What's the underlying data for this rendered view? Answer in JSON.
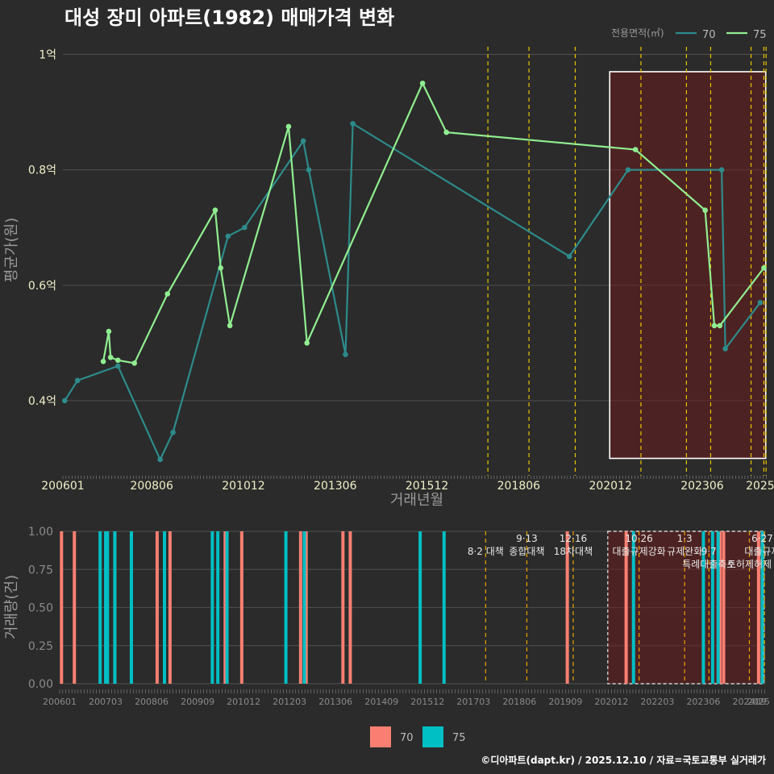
{
  "chart_data": [
    {
      "type": "line",
      "title": "대성 장미 아파트(1982) 매매가격 변화",
      "xlabel": "거래년월",
      "ylabel": "평균가(원)",
      "xlim": [
        2006.0,
        2025.2
      ],
      "ylim": [
        0.27,
        1.03
      ],
      "x_tick_labels": [
        "200601",
        "200806",
        "201012",
        "201306",
        "201512",
        "201806",
        "202012",
        "202306",
        "2025"
      ],
      "x_tick_values": [
        2006.0,
        2008.42,
        2010.92,
        2013.42,
        2015.92,
        2018.42,
        2020.92,
        2023.42,
        2025.0
      ],
      "y_tick_labels": [
        "0.4억",
        "0.6억",
        "0.8억",
        "1억"
      ],
      "y_tick_values": [
        0.4,
        0.6,
        0.8,
        1.0
      ],
      "legend_title": "전용면적(㎡)",
      "legend_position": "top-right",
      "highlight_region": {
        "x": [
          2020.9,
          2025.15
        ],
        "y": [
          0.3,
          0.97
        ]
      },
      "policy_lines": [
        2017.58,
        2018.7,
        2019.96,
        2021.75,
        2022.99,
        2023.65,
        2024.75,
        2025.1,
        2025.16
      ],
      "series": [
        {
          "name": "70",
          "color": "#2e8b8b",
          "x": [
            2006.05,
            2006.4,
            2007.5,
            2008.65,
            2009.0,
            2010.5,
            2010.95,
            2012.55,
            2012.7,
            2013.7,
            2013.9,
            2019.8,
            2021.4,
            2023.95,
            2024.05,
            2025.0
          ],
          "y": [
            0.4,
            0.435,
            0.46,
            0.298,
            0.345,
            0.685,
            0.7,
            0.85,
            0.8,
            0.48,
            0.88,
            0.65,
            0.8,
            0.8,
            0.49,
            0.57
          ]
        },
        {
          "name": "75",
          "color": "#90ee90",
          "x": [
            2007.1,
            2007.25,
            2007.3,
            2007.5,
            2007.95,
            2008.85,
            2010.15,
            2010.3,
            2010.55,
            2012.15,
            2012.65,
            2015.8,
            2016.45,
            2021.6,
            2023.5,
            2023.75,
            2023.9,
            2025.1
          ],
          "y": [
            0.468,
            0.52,
            0.475,
            0.47,
            0.465,
            0.585,
            0.73,
            0.63,
            0.53,
            0.875,
            0.5,
            0.95,
            0.865,
            0.835,
            0.73,
            0.53,
            0.53,
            0.63
          ]
        }
      ]
    },
    {
      "type": "bar",
      "xlabel": "",
      "ylabel": "거래량(건)",
      "ylim": [
        0,
        1.0
      ],
      "x_tick_labels": [
        "200601",
        "200703",
        "200806",
        "200909",
        "201012",
        "201203",
        "201306",
        "201409",
        "201512",
        "201703",
        "201806",
        "201909",
        "202012",
        "202203",
        "202306",
        "202409",
        "2025"
      ],
      "y_tick_labels": [
        "0.00",
        "0.25",
        "0.50",
        "0.75",
        "1.00"
      ],
      "y_tick_values": [
        0,
        0.25,
        0.5,
        0.75,
        1.0
      ],
      "series": [
        {
          "name": "70",
          "color": "#fa7f72",
          "x": [
            2006.05,
            2006.4,
            2007.5,
            2008.65,
            2009.0,
            2010.5,
            2010.95,
            2012.55,
            2012.7,
            2013.7,
            2013.9,
            2019.8,
            2021.4,
            2023.95,
            2024.05,
            2025.0
          ],
          "values": [
            1,
            1,
            1,
            1,
            1,
            1,
            1,
            1,
            1,
            1,
            1,
            1,
            1,
            1,
            1,
            1
          ]
        },
        {
          "name": "75",
          "color": "#00bfc4",
          "x": [
            2007.1,
            2007.25,
            2007.3,
            2007.5,
            2007.95,
            2008.85,
            2010.15,
            2010.3,
            2010.55,
            2012.15,
            2012.65,
            2015.8,
            2016.45,
            2021.6,
            2023.5,
            2023.75,
            2023.9,
            2025.1
          ],
          "values": [
            1,
            1,
            1,
            1,
            1,
            1,
            1,
            1,
            1,
            1,
            1,
            1,
            1,
            1,
            1,
            1,
            1,
            1
          ]
        }
      ],
      "annotations": [
        {
          "x": 2017.58,
          "text": "8·2 대책",
          "row": 1
        },
        {
          "x": 2018.7,
          "text": "9·13",
          "row": 0
        },
        {
          "x": 2018.7,
          "text": "종합대책",
          "row": 1
        },
        {
          "x": 2019.96,
          "text": "12·16",
          "row": 0
        },
        {
          "x": 2019.96,
          "text": "18차대책",
          "row": 1
        },
        {
          "x": 2021.75,
          "text": "10·26",
          "row": 0
        },
        {
          "x": 2021.75,
          "text": "대출규제강화",
          "row": 1
        },
        {
          "x": 2022.99,
          "text": "1·3",
          "row": 0
        },
        {
          "x": 2022.99,
          "text": "규제완화",
          "row": 1
        },
        {
          "x": 2023.65,
          "text": "9·7",
          "row": 1
        },
        {
          "x": 2023.65,
          "text": "특례대출축소",
          "row": 2
        },
        {
          "x": 2024.75,
          "text": "토허제허제",
          "row": 2
        },
        {
          "x": 2025.1,
          "text": "6·27",
          "row": 0
        },
        {
          "x": 2025.1,
          "text": "대출규제",
          "row": 1
        }
      ]
    }
  ],
  "footer": {
    "legend": [
      {
        "name": "70",
        "color": "#fa7f72"
      },
      {
        "name": "75",
        "color": "#00bfc4"
      }
    ],
    "credit": "©디아파트(dapt.kr) / 2025.12.10 / 자료=국토교통부 실거래가"
  }
}
